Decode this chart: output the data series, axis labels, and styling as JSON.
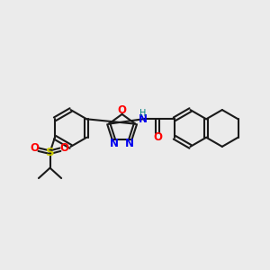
{
  "bg_color": "#ebebeb",
  "bond_color": "#1a1a1a",
  "bond_width": 1.5,
  "atom_colors": {
    "O": "#ff0000",
    "N": "#0000ee",
    "S": "#cccc00",
    "H": "#008080",
    "C": "#1a1a1a"
  },
  "font_size": 8.5,
  "fig_w": 3.0,
  "fig_h": 3.0,
  "dpi": 100,
  "xlim": [
    0,
    10
  ],
  "ylim": [
    0,
    10
  ]
}
